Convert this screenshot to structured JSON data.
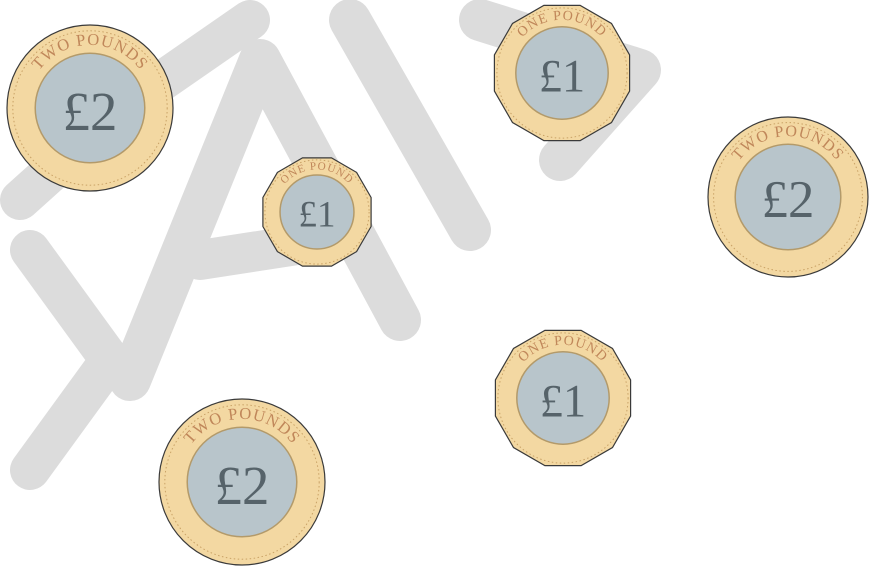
{
  "coins": [
    {
      "rim": "TWO POUNDS",
      "value": "£2"
    },
    {
      "rim": "ONE POUND",
      "value": "£1"
    },
    {
      "rim": "ONE POUND",
      "value": "£1"
    },
    {
      "rim": "TWO POUNDS",
      "value": "£2"
    },
    {
      "rim": "ONE POUND",
      "value": "£1"
    },
    {
      "rim": "TWO POUNDS",
      "value": "£2"
    }
  ]
}
